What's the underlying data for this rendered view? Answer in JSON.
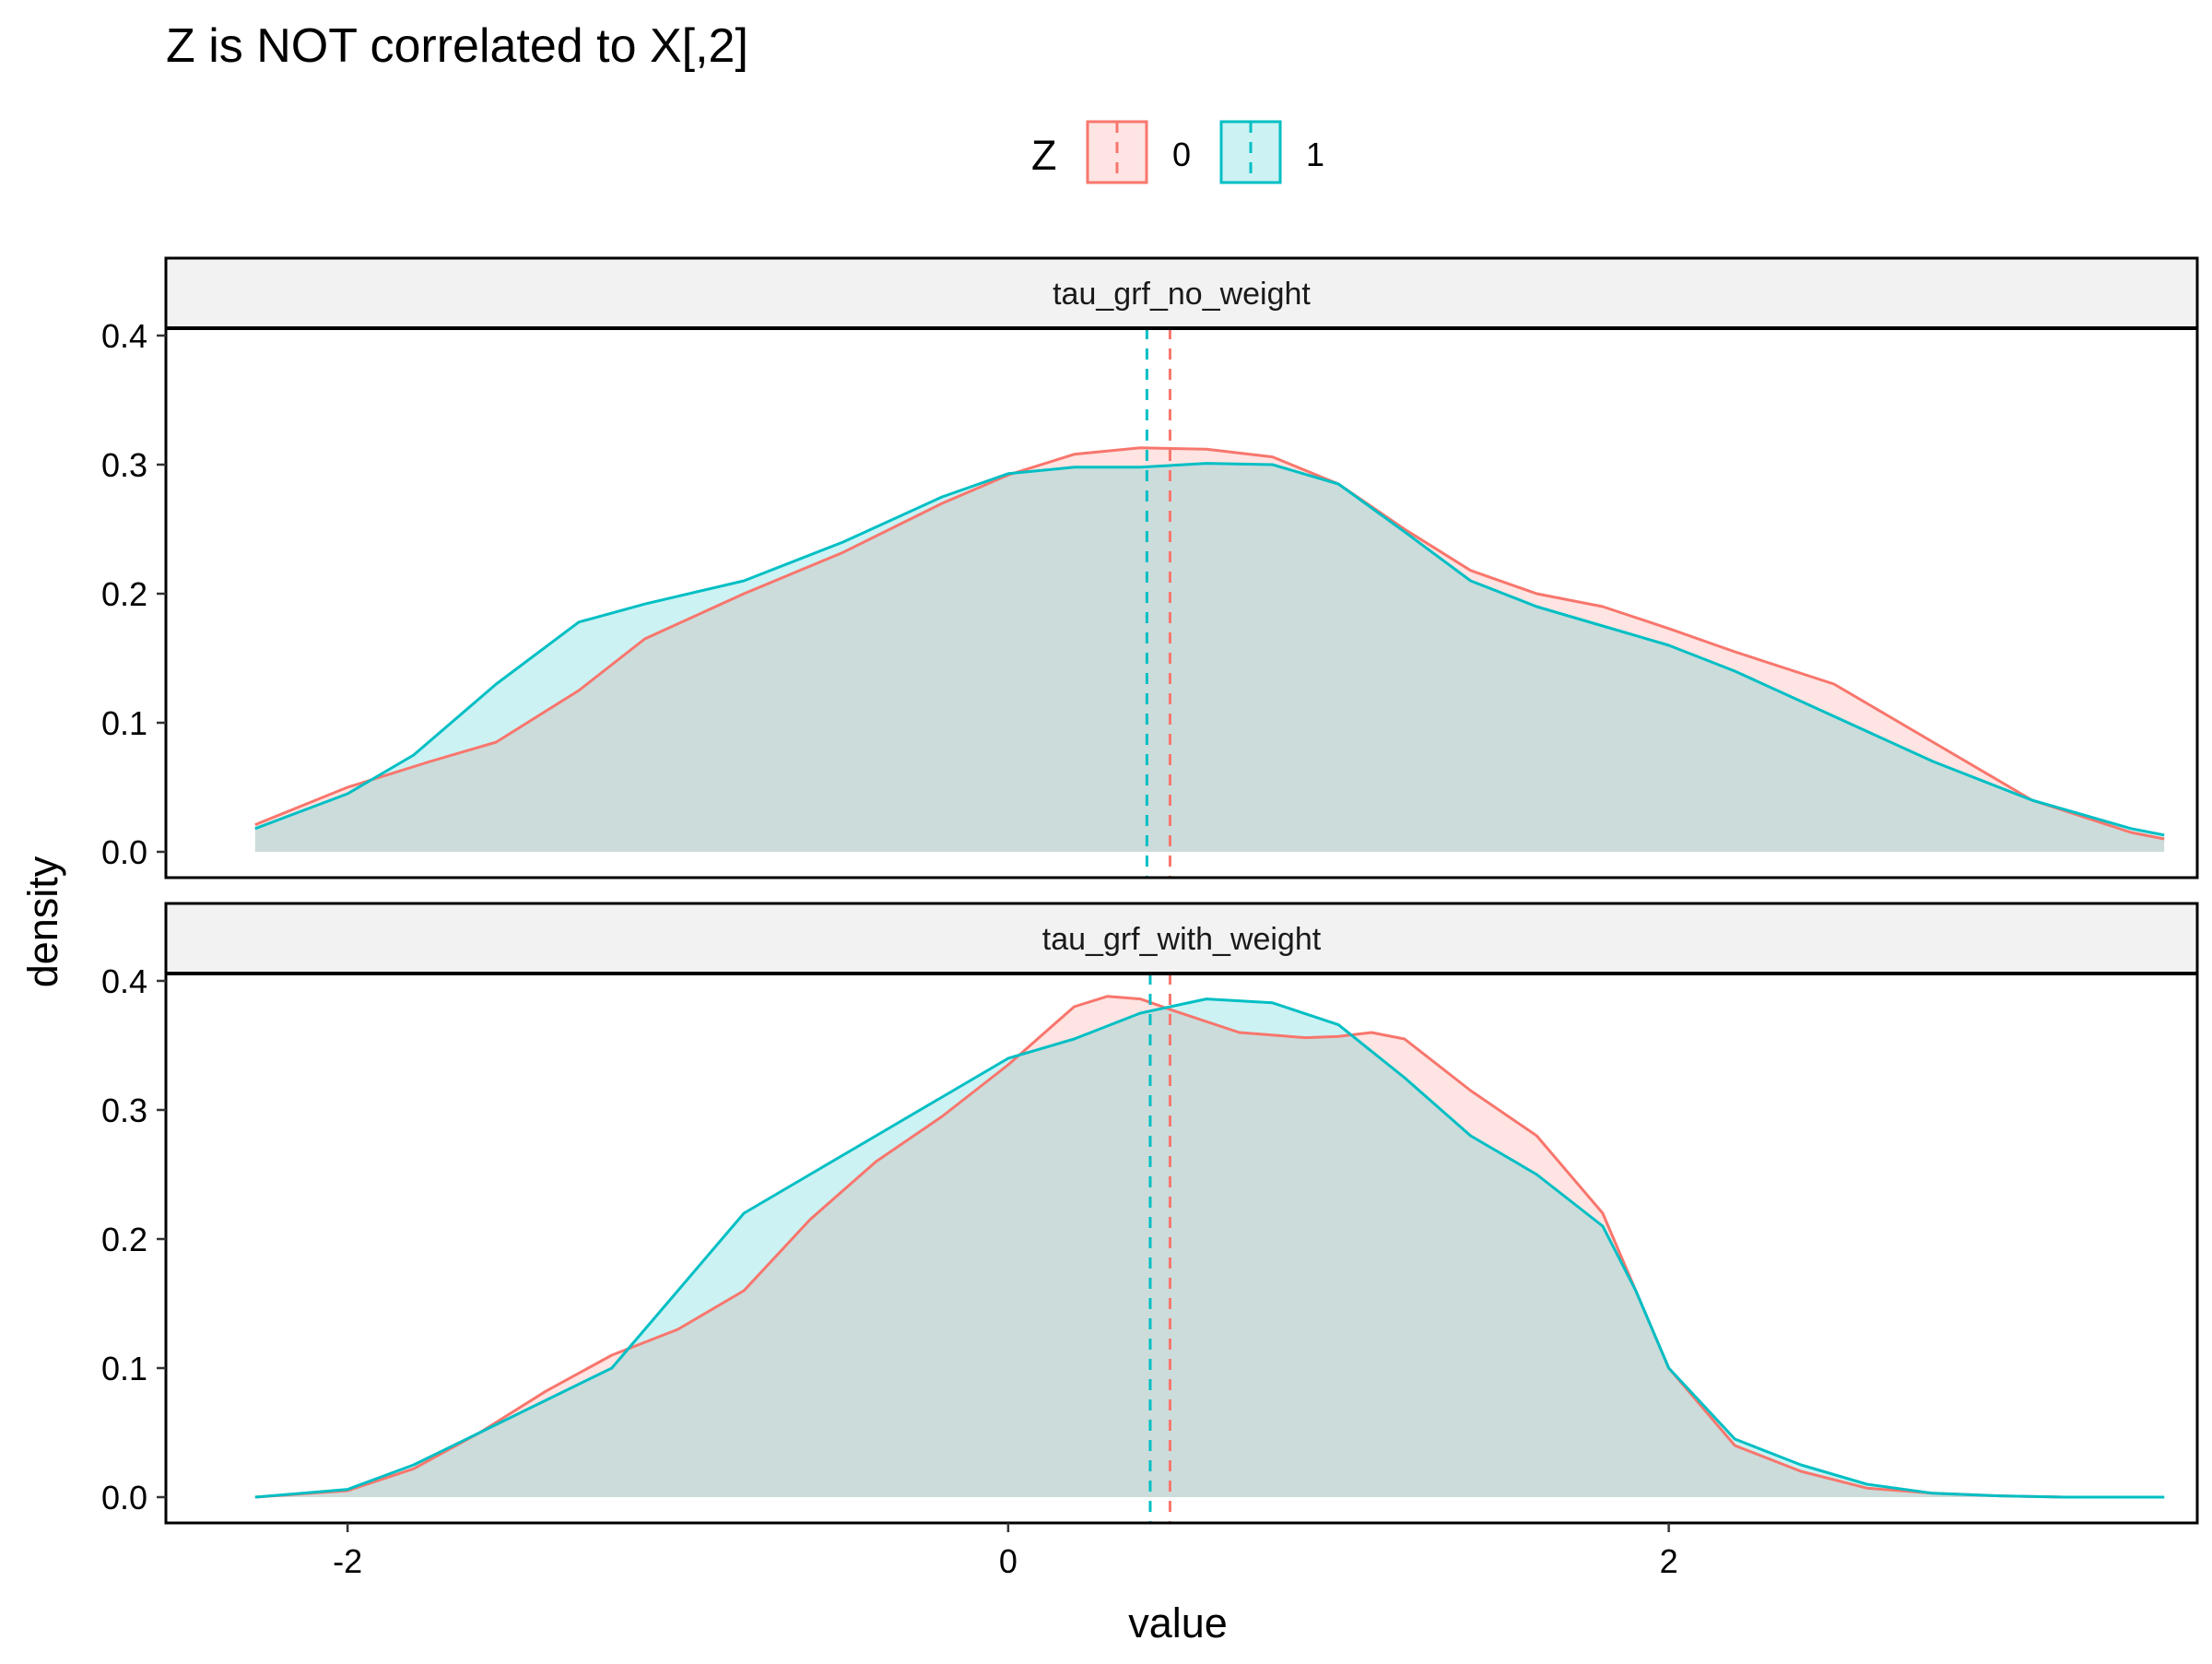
{
  "chart_data": {
    "type": "area",
    "title": "Z is NOT correlated to X[,2]",
    "xlabel": "value",
    "ylabel": "density",
    "xlim": [
      -2.55,
      3.6
    ],
    "ylim": [
      -0.02,
      0.46
    ],
    "x_ticks": [
      -2,
      0,
      2
    ],
    "x_tick_labels": [
      "-2",
      "0",
      "2"
    ],
    "y_ticks": [
      0.0,
      0.1,
      0.2,
      0.3,
      0.4
    ],
    "y_tick_labels": [
      "0.0",
      "0.1",
      "0.2",
      "0.3",
      "0.4"
    ],
    "grid": false,
    "legend": {
      "title": "Z",
      "position": "top",
      "entries": [
        {
          "label": "0",
          "color": "#F8766D"
        },
        {
          "label": "1",
          "color": "#00BFC4"
        }
      ]
    },
    "panels": [
      {
        "name": "tau_grf_no_weight",
        "mean_lines": [
          {
            "group": "0",
            "x": 0.49,
            "color": "#F8766D"
          },
          {
            "group": "1",
            "x": 0.42,
            "color": "#00BFC4"
          }
        ],
        "series": [
          {
            "name": "0",
            "color": "#F8766D",
            "x": [
              -2.28,
              -2.0,
              -1.75,
              -1.55,
              -1.3,
              -1.1,
              -0.8,
              -0.5,
              -0.2,
              0.0,
              0.2,
              0.4,
              0.6,
              0.8,
              1.0,
              1.2,
              1.4,
              1.6,
              1.8,
              2.0,
              2.2,
              2.5,
              2.8,
              3.1,
              3.4,
              3.5
            ],
            "y": [
              0.021,
              0.05,
              0.07,
              0.085,
              0.125,
              0.165,
              0.2,
              0.232,
              0.27,
              0.292,
              0.308,
              0.313,
              0.312,
              0.306,
              0.285,
              0.25,
              0.218,
              0.2,
              0.19,
              0.173,
              0.155,
              0.13,
              0.085,
              0.04,
              0.015,
              0.01
            ]
          },
          {
            "name": "1",
            "color": "#00BFC4",
            "x": [
              -2.28,
              -2.0,
              -1.8,
              -1.55,
              -1.3,
              -1.1,
              -0.8,
              -0.5,
              -0.2,
              0.0,
              0.2,
              0.4,
              0.6,
              0.8,
              1.0,
              1.2,
              1.4,
              1.6,
              1.8,
              2.0,
              2.2,
              2.5,
              2.8,
              3.1,
              3.4,
              3.5
            ],
            "y": [
              0.018,
              0.045,
              0.075,
              0.13,
              0.178,
              0.192,
              0.21,
              0.24,
              0.275,
              0.293,
              0.298,
              0.298,
              0.301,
              0.3,
              0.285,
              0.248,
              0.21,
              0.19,
              0.175,
              0.16,
              0.14,
              0.105,
              0.07,
              0.04,
              0.018,
              0.013
            ]
          }
        ]
      },
      {
        "name": "tau_grf_with_weight",
        "mean_lines": [
          {
            "group": "0",
            "x": 0.49,
            "color": "#F8766D"
          },
          {
            "group": "1",
            "x": 0.43,
            "color": "#00BFC4"
          }
        ],
        "series": [
          {
            "name": "0",
            "color": "#F8766D",
            "x": [
              -2.28,
              -2.0,
              -1.8,
              -1.6,
              -1.4,
              -1.2,
              -1.0,
              -0.8,
              -0.6,
              -0.4,
              -0.2,
              0.0,
              0.2,
              0.3,
              0.4,
              0.5,
              0.7,
              0.9,
              1.0,
              1.1,
              1.2,
              1.4,
              1.6,
              1.8,
              1.9,
              2.0,
              2.2,
              2.4,
              2.6,
              2.8,
              3.0,
              3.2,
              3.5
            ],
            "y": [
              0.0,
              0.005,
              0.022,
              0.05,
              0.082,
              0.11,
              0.13,
              0.16,
              0.215,
              0.26,
              0.295,
              0.335,
              0.38,
              0.388,
              0.386,
              0.377,
              0.36,
              0.356,
              0.357,
              0.36,
              0.355,
              0.315,
              0.28,
              0.22,
              0.16,
              0.1,
              0.04,
              0.02,
              0.007,
              0.003,
              0.001,
              0.0,
              0.0
            ]
          },
          {
            "name": "1",
            "color": "#00BFC4",
            "x": [
              -2.28,
              -2.0,
              -1.8,
              -1.6,
              -1.4,
              -1.2,
              -1.0,
              -0.8,
              -0.6,
              -0.4,
              -0.2,
              0.0,
              0.2,
              0.4,
              0.6,
              0.8,
              1.0,
              1.2,
              1.4,
              1.6,
              1.8,
              1.9,
              2.0,
              2.2,
              2.4,
              2.6,
              2.8,
              3.0,
              3.2,
              3.5
            ],
            "y": [
              0.0,
              0.006,
              0.025,
              0.05,
              0.075,
              0.1,
              0.16,
              0.22,
              0.25,
              0.28,
              0.31,
              0.34,
              0.355,
              0.375,
              0.386,
              0.383,
              0.366,
              0.325,
              0.28,
              0.25,
              0.21,
              0.16,
              0.1,
              0.045,
              0.025,
              0.01,
              0.003,
              0.001,
              0.0,
              0.0
            ]
          }
        ]
      }
    ]
  }
}
